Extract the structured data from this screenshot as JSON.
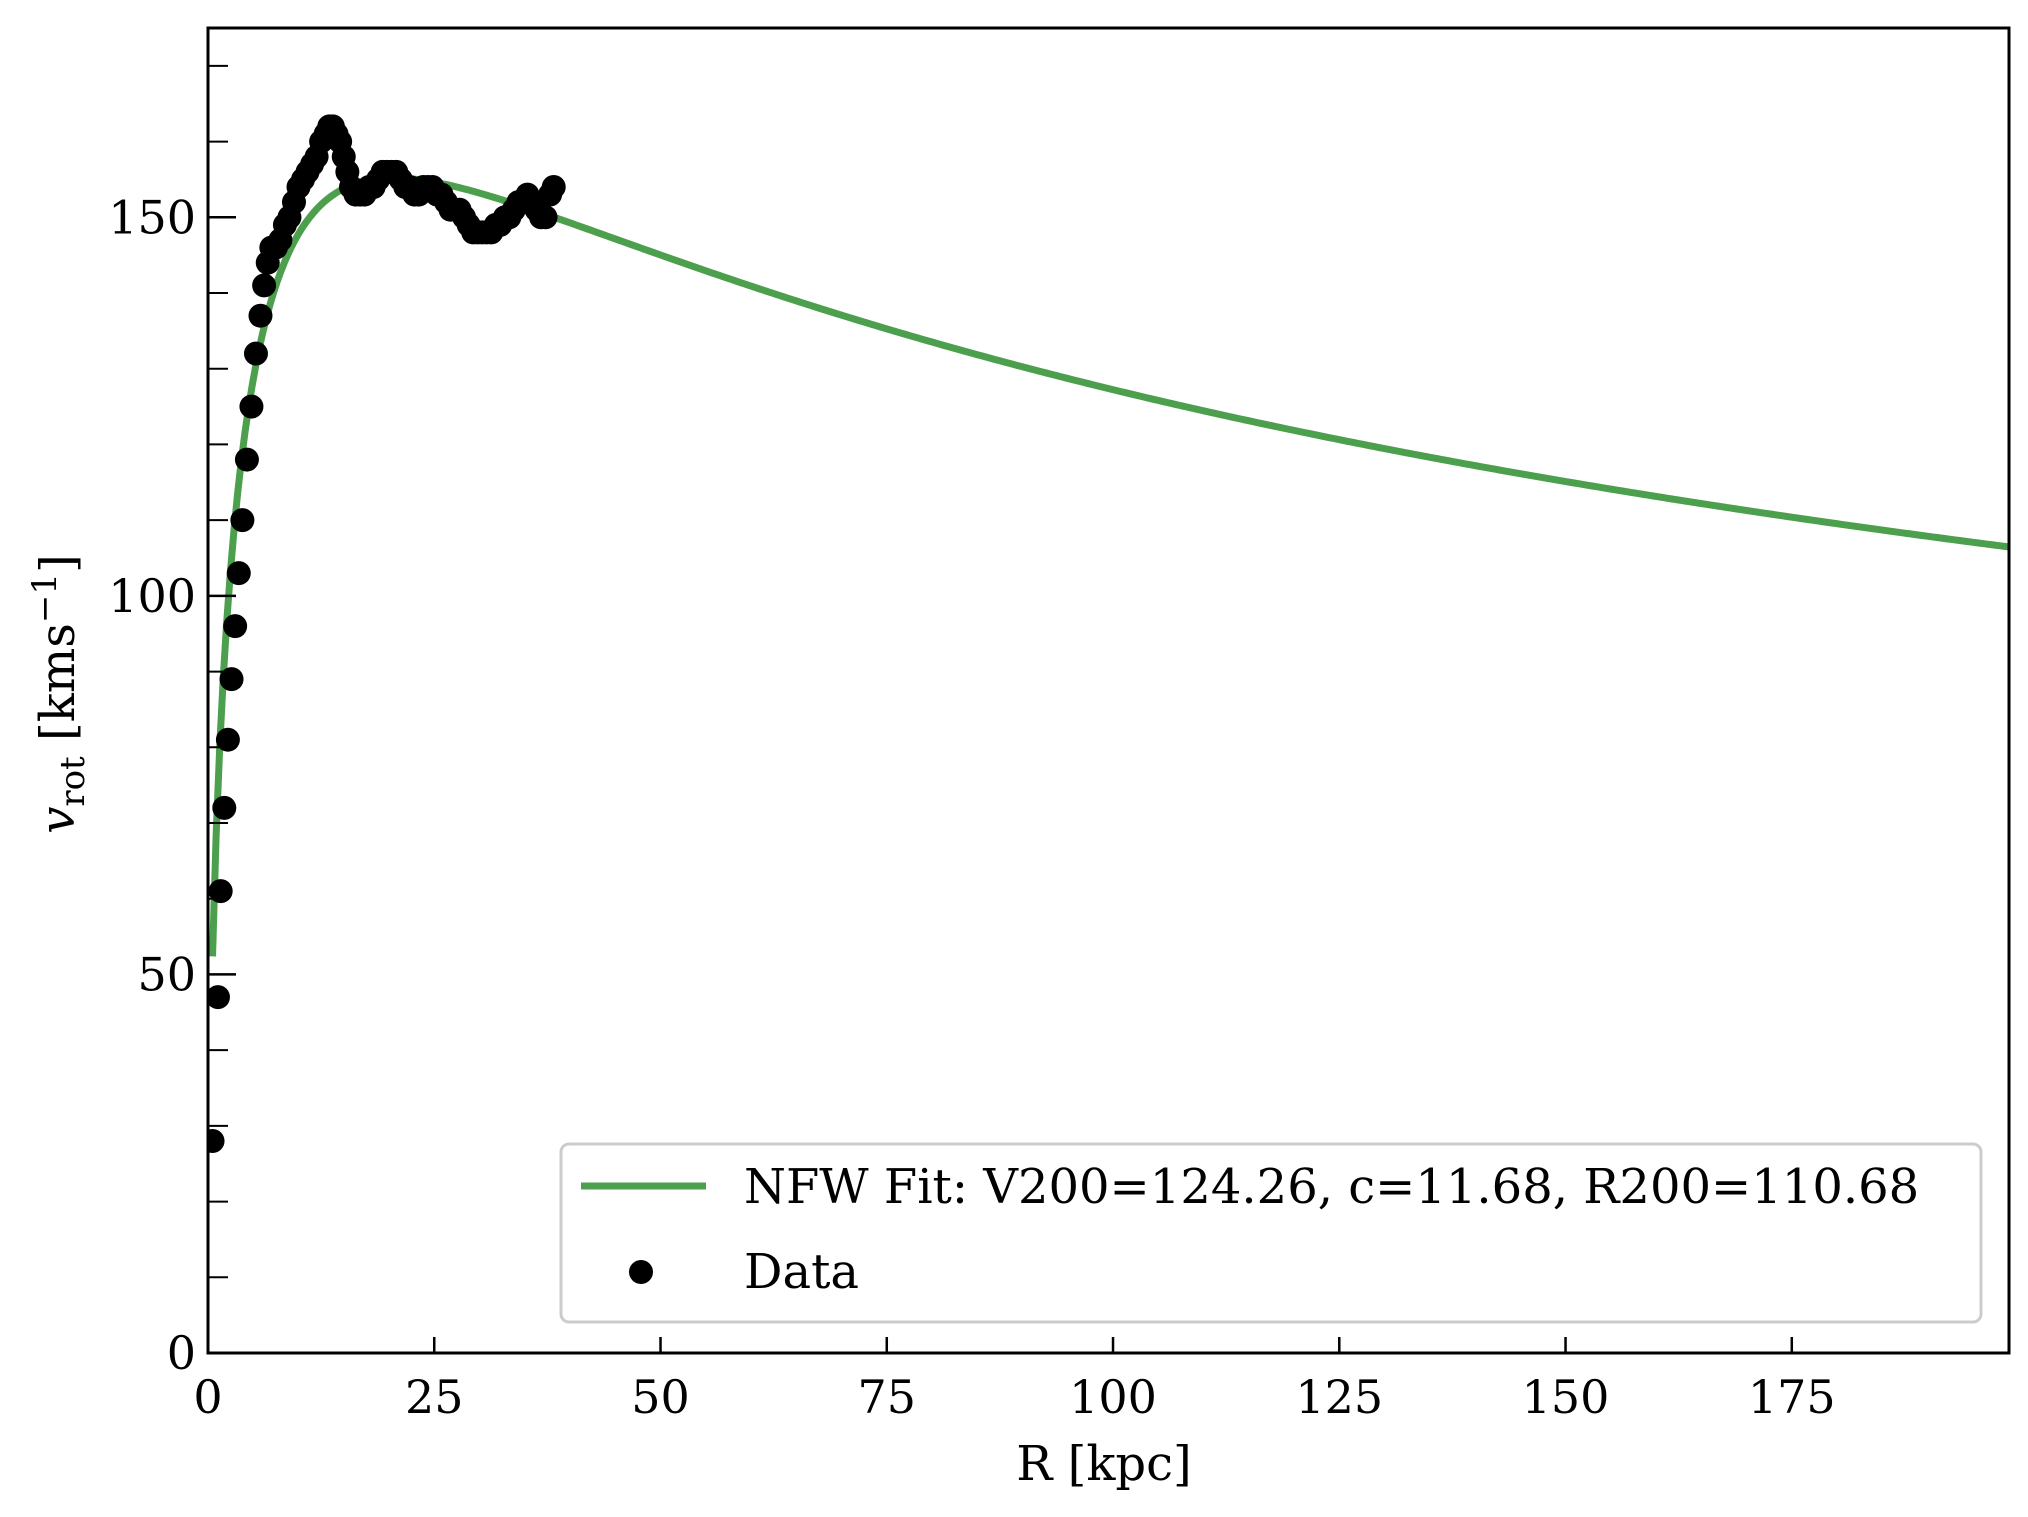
{
  "chart_data": {
    "type": "line",
    "title": "",
    "xlabel": "R [kpc]",
    "ylabel": "v_rot [kms^-1]",
    "ylabel_parts": {
      "main": "v",
      "sub": "rot",
      "unit_open": "[kms",
      "unit_sup": "−1",
      "unit_close": "]"
    },
    "xlim": [
      0,
      199
    ],
    "ylim": [
      0,
      175
    ],
    "xticks": [
      0,
      25,
      50,
      75,
      100,
      125,
      150,
      175
    ],
    "xtick_labels": [
      "0",
      "25",
      "50",
      "75",
      "100",
      "125",
      "150",
      "175"
    ],
    "yticks": [
      0,
      50,
      100,
      150
    ],
    "ytick_labels": [
      "0",
      "50",
      "100",
      "150"
    ],
    "y_minor_step": 10,
    "grid": false,
    "legend_position": "lower-right",
    "series": [
      {
        "name": "NFW Fit: V200=124.26, c=11.68, R200=110.68",
        "kind": "line",
        "color": "#4c9f4c",
        "model": {
          "V200": 124.26,
          "c": 11.68,
          "R200": 110.68,
          "r_start": 0.5,
          "r_end": 199
        }
      },
      {
        "name": "Data",
        "kind": "scatter",
        "color": "#000000",
        "x": [
          0.5,
          1.1,
          1.4,
          1.8,
          2.2,
          2.6,
          3.0,
          3.4,
          3.8,
          4.3,
          4.8,
          5.3,
          5.8,
          6.2,
          6.6,
          7.0,
          7.5,
          8.0,
          8.5,
          9.0,
          9.5,
          10.0,
          10.5,
          11.0,
          11.5,
          12.0,
          12.5,
          13.0,
          13.4,
          13.8,
          14.2,
          14.6,
          15.0,
          15.4,
          15.8,
          16.3,
          16.8,
          17.3,
          17.8,
          18.3,
          18.8,
          19.3,
          19.8,
          20.3,
          20.8,
          21.3,
          21.8,
          22.3,
          22.8,
          23.3,
          23.8,
          24.3,
          24.8,
          25.3,
          25.8,
          26.3,
          26.8,
          27.3,
          27.8,
          28.3,
          28.8,
          29.3,
          29.8,
          30.3,
          30.8,
          31.3,
          31.8,
          32.3,
          32.8,
          33.3,
          33.8,
          34.3,
          34.8,
          35.3,
          35.8,
          36.3,
          36.8,
          37.3,
          37.8,
          38.2
        ],
        "y": [
          28,
          47,
          61,
          72,
          81,
          89,
          96,
          103,
          110,
          118,
          125,
          132,
          137,
          141,
          144,
          146,
          146,
          147,
          149,
          150,
          152,
          154,
          155,
          156,
          157,
          158,
          160,
          161,
          162,
          162,
          161,
          160,
          158,
          156,
          154,
          153,
          153,
          153,
          154,
          154,
          155,
          156,
          156,
          156,
          156,
          155,
          154,
          154,
          153,
          153,
          154,
          154,
          154,
          153,
          153,
          152,
          151,
          151,
          151,
          150,
          149,
          148,
          148,
          148,
          148,
          148,
          149,
          149,
          150,
          150,
          151,
          152,
          152,
          153,
          152,
          151,
          150,
          150,
          153,
          154
        ]
      }
    ]
  }
}
